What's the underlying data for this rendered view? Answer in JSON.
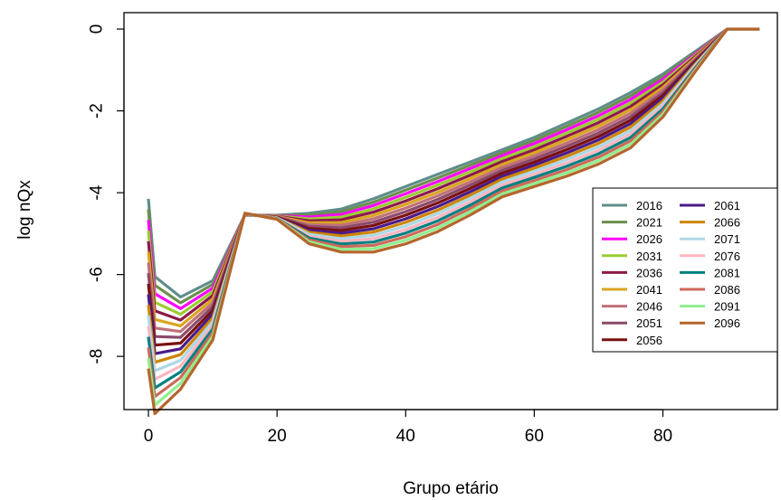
{
  "chart_data": {
    "type": "line",
    "title": "",
    "xlabel": "Grupo etário",
    "ylabel": "log nQx",
    "x": [
      0,
      1,
      5,
      10,
      15,
      20,
      25,
      30,
      35,
      40,
      45,
      50,
      55,
      60,
      65,
      70,
      75,
      80,
      85,
      90,
      95
    ],
    "xlim": [
      -3.8,
      97.8
    ],
    "ylim": [
      -9.3,
      0.4
    ],
    "x_ticks": [
      "0",
      "20",
      "40",
      "60",
      "80"
    ],
    "x_tick_values": [
      0,
      20,
      40,
      60,
      80
    ],
    "y_ticks": [
      "0",
      "-2",
      "-4",
      "-6",
      "-8"
    ],
    "y_tick_values": [
      0,
      -2,
      -4,
      -6,
      -8
    ],
    "grid": false,
    "legend_position": "bottom-right",
    "first_series": {
      "name": "2016",
      "values": [
        -4.15,
        -6.05,
        -6.55,
        -6.15,
        -4.55,
        -4.55,
        -4.5,
        -4.4,
        -4.15,
        -3.85,
        -3.55,
        -3.25,
        -2.95,
        -2.65,
        -2.3,
        -1.95,
        -1.55,
        -1.1,
        -0.55,
        0,
        0
      ]
    },
    "last_series": {
      "name": "2096",
      "values": [
        -8.3,
        -9.4,
        -8.8,
        -7.6,
        -4.5,
        -4.65,
        -5.25,
        -5.45,
        -5.45,
        -5.25,
        -4.95,
        -4.55,
        -4.1,
        -3.85,
        -3.6,
        -3.3,
        -2.9,
        -2.15,
        -1.05,
        0,
        0
      ]
    },
    "series": [
      {
        "name": "2016",
        "color": "#5f8e8a"
      },
      {
        "name": "2021",
        "color": "#6b8f4e"
      },
      {
        "name": "2026",
        "color": "#ff00ff"
      },
      {
        "name": "2031",
        "color": "#9acd32"
      },
      {
        "name": "2036",
        "color": "#8b1a4a"
      },
      {
        "name": "2041",
        "color": "#daa520"
      },
      {
        "name": "2046",
        "color": "#c0707a"
      },
      {
        "name": "2051",
        "color": "#8b4a6a"
      },
      {
        "name": "2056",
        "color": "#7a1010"
      },
      {
        "name": "2061",
        "color": "#4b1a8a"
      },
      {
        "name": "2066",
        "color": "#cd8500"
      },
      {
        "name": "2071",
        "color": "#add8e6"
      },
      {
        "name": "2076",
        "color": "#ffb6c1"
      },
      {
        "name": "2081",
        "color": "#008080"
      },
      {
        "name": "2086",
        "color": "#cd6a5a"
      },
      {
        "name": "2091",
        "color": "#90ee90"
      },
      {
        "name": "2096",
        "color": "#b5652d"
      }
    ]
  }
}
